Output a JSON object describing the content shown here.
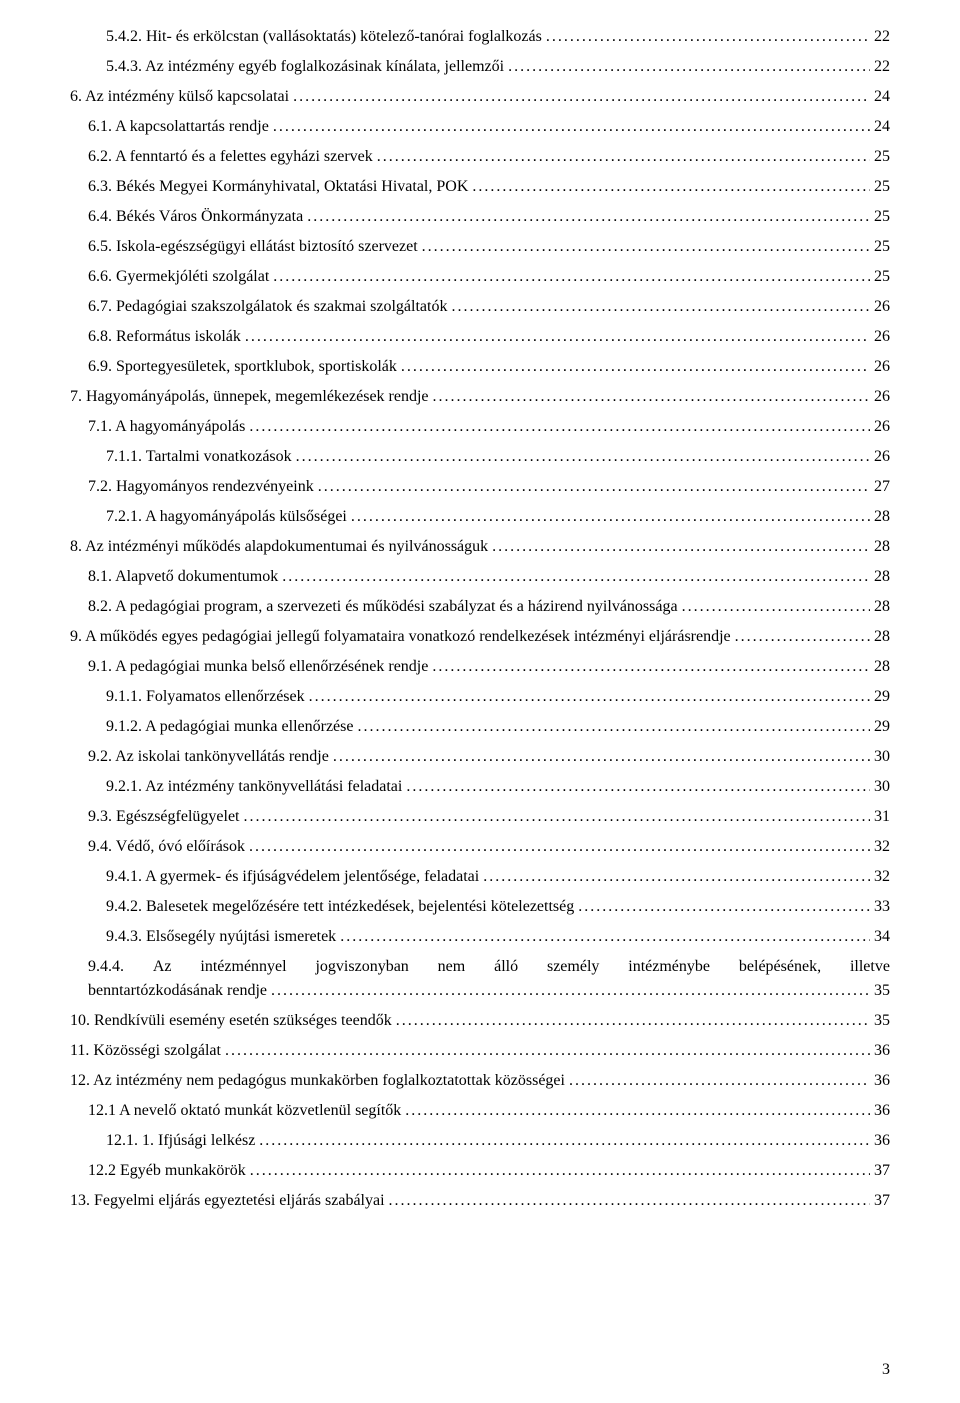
{
  "toc": {
    "entries": [
      {
        "indent": 2,
        "title": "5.4.2. Hit- és erkölcstan (vallásoktatás) kötelező-tanórai foglalkozás",
        "page": "22"
      },
      {
        "indent": 2,
        "title": "5.4.3. Az intézmény egyéb foglalkozásinak kínálata, jellemzői",
        "page": "22"
      },
      {
        "indent": 0,
        "title": "6. Az intézmény külső kapcsolatai",
        "page": "24"
      },
      {
        "indent": 1,
        "title": "6.1. A kapcsolattartás rendje",
        "page": "24"
      },
      {
        "indent": 1,
        "title": "6.2. A fenntartó és a felettes egyházi szervek",
        "page": "25"
      },
      {
        "indent": 1,
        "title": "6.3. Békés Megyei Kormányhivatal, Oktatási Hivatal, POK",
        "page": "25"
      },
      {
        "indent": 1,
        "title": "6.4. Békés Város Önkormányzata",
        "page": "25"
      },
      {
        "indent": 1,
        "title": "6.5. Iskola-egészségügyi ellátást biztosító szervezet",
        "page": "25"
      },
      {
        "indent": 1,
        "title": "6.6. Gyermekjóléti szolgálat",
        "page": "25"
      },
      {
        "indent": 1,
        "title": "6.7. Pedagógiai szakszolgálatok és szakmai szolgáltatók",
        "page": "26"
      },
      {
        "indent": 1,
        "title": "6.8. Református iskolák",
        "page": "26"
      },
      {
        "indent": 1,
        "title": "6.9. Sportegyesületek, sportklubok, sportiskolák",
        "page": "26"
      },
      {
        "indent": 0,
        "title": "7. Hagyományápolás, ünnepek, megemlékezések rendje",
        "page": "26"
      },
      {
        "indent": 1,
        "title": "7.1. A hagyományápolás",
        "page": "26"
      },
      {
        "indent": 2,
        "title": "7.1.1. Tartalmi vonatkozások",
        "page": "26"
      },
      {
        "indent": 1,
        "title": "7.2. Hagyományos rendezvényeink",
        "page": "27"
      },
      {
        "indent": 2,
        "title": "7.2.1. A hagyományápolás külsőségei",
        "page": "28"
      },
      {
        "indent": 0,
        "title": "8. Az intézményi működés alapdokumentumai és nyilvánosságuk",
        "page": "28"
      },
      {
        "indent": 1,
        "title": "8.1. Alapvető dokumentumok",
        "page": "28"
      },
      {
        "indent": 1,
        "title": "8.2. A pedagógiai program, a szervezeti és működési szabályzat és a házirend nyilvánossága",
        "page": "28"
      },
      {
        "indent": 0,
        "title": "9. A működés egyes pedagógiai jellegű folyamataira vonatkozó rendelkezések intézményi eljárásrendje",
        "page": "28"
      },
      {
        "indent": 1,
        "title": "9.1. A pedagógiai munka belső ellenőrzésének rendje",
        "page": "28"
      },
      {
        "indent": 2,
        "title": "9.1.1. Folyamatos ellenőrzések",
        "page": "29"
      },
      {
        "indent": 2,
        "title": "9.1.2. A pedagógiai munka ellenőrzése",
        "page": "29"
      },
      {
        "indent": 1,
        "title": "9.2. Az iskolai tankönyvellátás rendje",
        "page": "30"
      },
      {
        "indent": 2,
        "title": "9.2.1. Az intézmény tankönyvellátási feladatai",
        "page": "30"
      },
      {
        "indent": 1,
        "title": "9.3. Egészségfelügyelet",
        "page": "31"
      },
      {
        "indent": 1,
        "title": "9.4. Védő, óvó előírások",
        "page": "32"
      },
      {
        "indent": 2,
        "title": "9.4.1. A gyermek- és ifjúságvédelem jelentősége, feladatai",
        "page": "32"
      },
      {
        "indent": 2,
        "title": "9.4.2. Balesetek megelőzésére tett intézkedések, bejelentési kötelezettség",
        "page": "33"
      },
      {
        "indent": 2,
        "title": "9.4.3. Elsősegély nyújtási ismeretek",
        "page": "34"
      }
    ],
    "justified_944": {
      "words": [
        "9.4.4.",
        "Az",
        "intézménnyel",
        "jogviszonyban",
        "nem",
        "álló",
        "személy",
        "intézménybe",
        "belépésének,",
        "illetve"
      ],
      "secondLine": {
        "title": "benntartózkodásának rendje",
        "page": "35"
      }
    },
    "entries2": [
      {
        "indent": 0,
        "title": "10. Rendkívüli esemény esetén szükséges teendők",
        "page": "35"
      },
      {
        "indent": 0,
        "title": "11. Közösségi szolgálat",
        "page": "36"
      },
      {
        "indent": 0,
        "title": "12. Az intézmény nem pedagógus munkakörben foglalkoztatottak közösségei",
        "page": "36"
      },
      {
        "indent": 1,
        "title": "12.1 A nevelő oktató munkát közvetlenül segítők",
        "page": "36"
      },
      {
        "indent": 2,
        "title": "12.1. 1. Ifjúsági lelkész",
        "page": "36"
      },
      {
        "indent": 1,
        "title": "12.2 Egyéb munkakörök",
        "page": "37"
      },
      {
        "indent": 0,
        "title": "13. Fegyelmi eljárás egyeztetési eljárás szabályai",
        "page": "37"
      }
    ]
  },
  "pageNumber": "3"
}
